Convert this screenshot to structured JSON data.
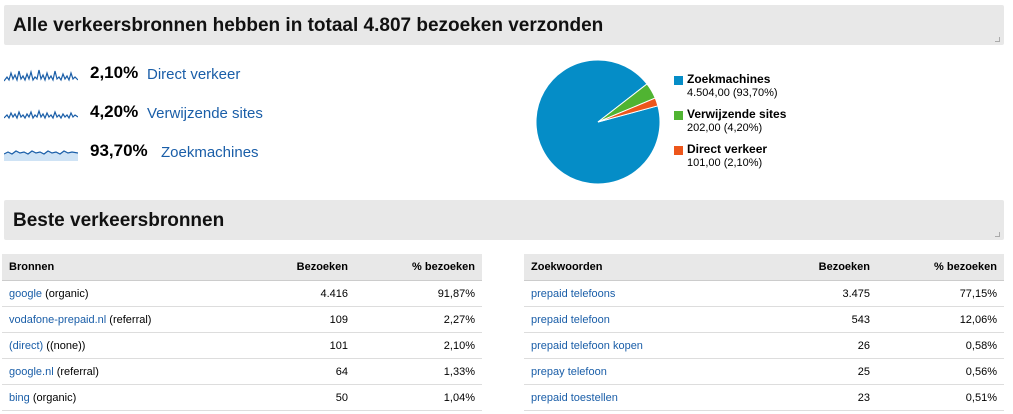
{
  "header1": {
    "title": "Alle verkeersbronnen hebben in totaal 4.807 bezoeken verzonden"
  },
  "sources": [
    {
      "pct": "2,10%",
      "label": "Direct verkeer"
    },
    {
      "pct": "4,20%",
      "label": "Verwijzende sites"
    },
    {
      "pct": "93,70%",
      "label": "Zoekmachines"
    }
  ],
  "chart_data": {
    "type": "pie",
    "slices": [
      {
        "name": "Zoekmachines",
        "value": 4504,
        "percent": 93.7,
        "color": "#058dc7",
        "label_value": "4.504,00 (93,70%)"
      },
      {
        "name": "Verwijzende sites",
        "value": 202,
        "percent": 4.2,
        "color": "#50b432",
        "label_value": "202,00 (4,20%)"
      },
      {
        "name": "Direct verkeer",
        "value": 101,
        "percent": 2.1,
        "color": "#ed561b",
        "label_value": "101,00 (2,10%)"
      }
    ],
    "legend_position": "right"
  },
  "header2": {
    "title": "Beste verkeersbronnen"
  },
  "table_left": {
    "headers": [
      "Bronnen",
      "Bezoeken",
      "% bezoeken"
    ],
    "rows": [
      {
        "link": "google",
        "suffix": " (organic)",
        "visits": "4.416",
        "pct": "91,87%"
      },
      {
        "link": "vodafone-prepaid.nl",
        "suffix": " (referral)",
        "visits": "109",
        "pct": "2,27%"
      },
      {
        "link": "(direct)",
        "suffix": " ((none))",
        "visits": "101",
        "pct": "2,10%"
      },
      {
        "link": "google.nl",
        "suffix": " (referral)",
        "visits": "64",
        "pct": "1,33%"
      },
      {
        "link": "bing",
        "suffix": " (organic)",
        "visits": "50",
        "pct": "1,04%"
      }
    ]
  },
  "table_right": {
    "headers": [
      "Zoekwoorden",
      "Bezoeken",
      "% bezoeken"
    ],
    "rows": [
      {
        "link": "prepaid telefoons",
        "visits": "3.475",
        "pct": "77,15%"
      },
      {
        "link": "prepaid telefoon",
        "visits": "543",
        "pct": "12,06%"
      },
      {
        "link": "prepaid telefoon kopen",
        "visits": "26",
        "pct": "0,58%"
      },
      {
        "link": "prepay telefoon",
        "visits": "25",
        "pct": "0,56%"
      },
      {
        "link": "prepaid toestellen",
        "visits": "23",
        "pct": "0,51%"
      }
    ]
  }
}
